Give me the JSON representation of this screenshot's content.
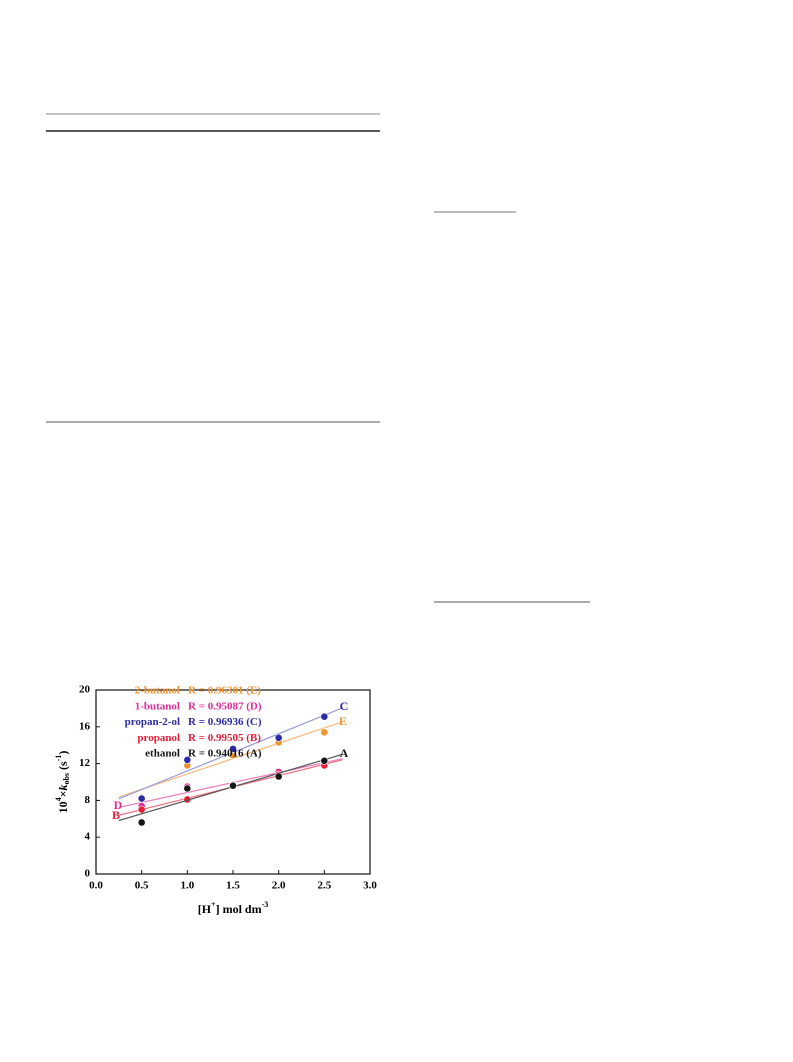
{
  "chart_data": {
    "type": "scatter",
    "xlabel": [
      "[H",
      "+",
      "] mol dm",
      "-3"
    ],
    "ylabel": [
      "10",
      "4",
      "×",
      "k",
      "obs",
      " (s",
      "-1",
      ")"
    ],
    "x": [
      0.5,
      1.0,
      1.5,
      2.0,
      2.5
    ],
    "xlim": [
      0,
      3
    ],
    "xticks": [
      {
        "value": 0,
        "label": "0.0"
      },
      {
        "value": 0.5,
        "label": "0.5"
      },
      {
        "value": 1,
        "label": "1.0"
      },
      {
        "value": 1.5,
        "label": "1.5"
      },
      {
        "value": 2,
        "label": "2.0"
      },
      {
        "value": 2.5,
        "label": "2.5"
      },
      {
        "value": 3,
        "label": "3.0"
      }
    ],
    "ylim": [
      0,
      20
    ],
    "yticks": [
      0,
      4,
      8,
      12,
      16,
      20
    ],
    "series": [
      {
        "name": "2-butanol",
        "fit_label": "R = 0.96301 (E)",
        "line_label": "E",
        "color": "#f0922e",
        "line_color": "#f6b77a",
        "values": [
          8.3,
          11.8,
          12.9,
          14.3,
          15.4
        ]
      },
      {
        "name": "1-butanol",
        "fit_label": "R = 0.95087 (D)",
        "line_label": "D",
        "color": "#e02c96",
        "line_color": "#ea7cbc",
        "values": [
          7.4,
          9.5,
          9.7,
          11.1,
          12.0
        ]
      },
      {
        "name": "propan-2-ol",
        "fit_label": "R = 0.96936 (C)",
        "line_label": "C",
        "color": "#2b2ba6",
        "line_color": "#9a9ade",
        "values": [
          8.2,
          12.4,
          13.6,
          14.8,
          17.1
        ]
      },
      {
        "name": "propanol",
        "fit_label": "R = 0.99505 (B)",
        "line_label": "B",
        "color": "#e41e3a",
        "line_color": "#ee7080",
        "values": [
          7.0,
          8.1,
          9.6,
          10.8,
          11.8
        ]
      },
      {
        "name": "ethanol",
        "fit_label": "R = 0.94016 (A)",
        "line_label": "A",
        "color": "#151515",
        "line_color": "#555555",
        "values": [
          5.6,
          9.3,
          9.6,
          10.6,
          12.3
        ]
      }
    ]
  }
}
